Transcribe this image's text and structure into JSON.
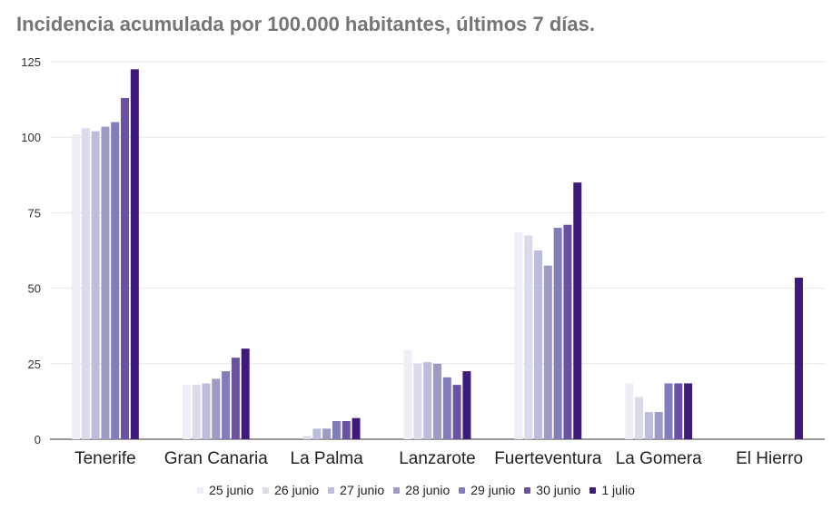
{
  "chart_data": {
    "type": "bar",
    "title": "Incidencia acumulada por 100.000 habitantes, últimos 7 días.",
    "xlabel": "",
    "ylabel": "",
    "ylim": [
      0,
      125
    ],
    "yticks": [
      "0",
      "25",
      "50",
      "75",
      "100",
      "125"
    ],
    "grid": true,
    "legend_position": "bottom",
    "categories": [
      "Tenerife",
      "Gran Canaria",
      "La Palma",
      "Lanzarote",
      "Fuerteventura",
      "La Gomera",
      "El Hierro"
    ],
    "series": [
      {
        "name": "25 junio",
        "color": "#efedf5",
        "values": [
          101,
          18,
          0,
          29.5,
          68.5,
          18.5,
          0
        ]
      },
      {
        "name": "26 junio",
        "color": "#dadaeb",
        "values": [
          103,
          18,
          1,
          25,
          67.5,
          14,
          0
        ]
      },
      {
        "name": "27 junio",
        "color": "#bcbddc",
        "values": [
          102,
          18.5,
          3.5,
          25.5,
          62.5,
          9,
          0
        ]
      },
      {
        "name": "28 junio",
        "color": "#9e9ac8",
        "values": [
          103.5,
          20,
          3.5,
          25,
          57.5,
          9,
          0
        ]
      },
      {
        "name": "29 junio",
        "color": "#807dba",
        "values": [
          105,
          22.5,
          6,
          20.5,
          70,
          18.5,
          0
        ]
      },
      {
        "name": "30 junio",
        "color": "#6a51a3",
        "values": [
          113,
          27,
          6,
          18,
          71,
          18.5,
          0
        ]
      },
      {
        "name": "1 julio",
        "color": "#3f1a7c",
        "values": [
          122.5,
          30,
          7,
          22.5,
          85,
          18.5,
          53.5
        ]
      }
    ]
  }
}
